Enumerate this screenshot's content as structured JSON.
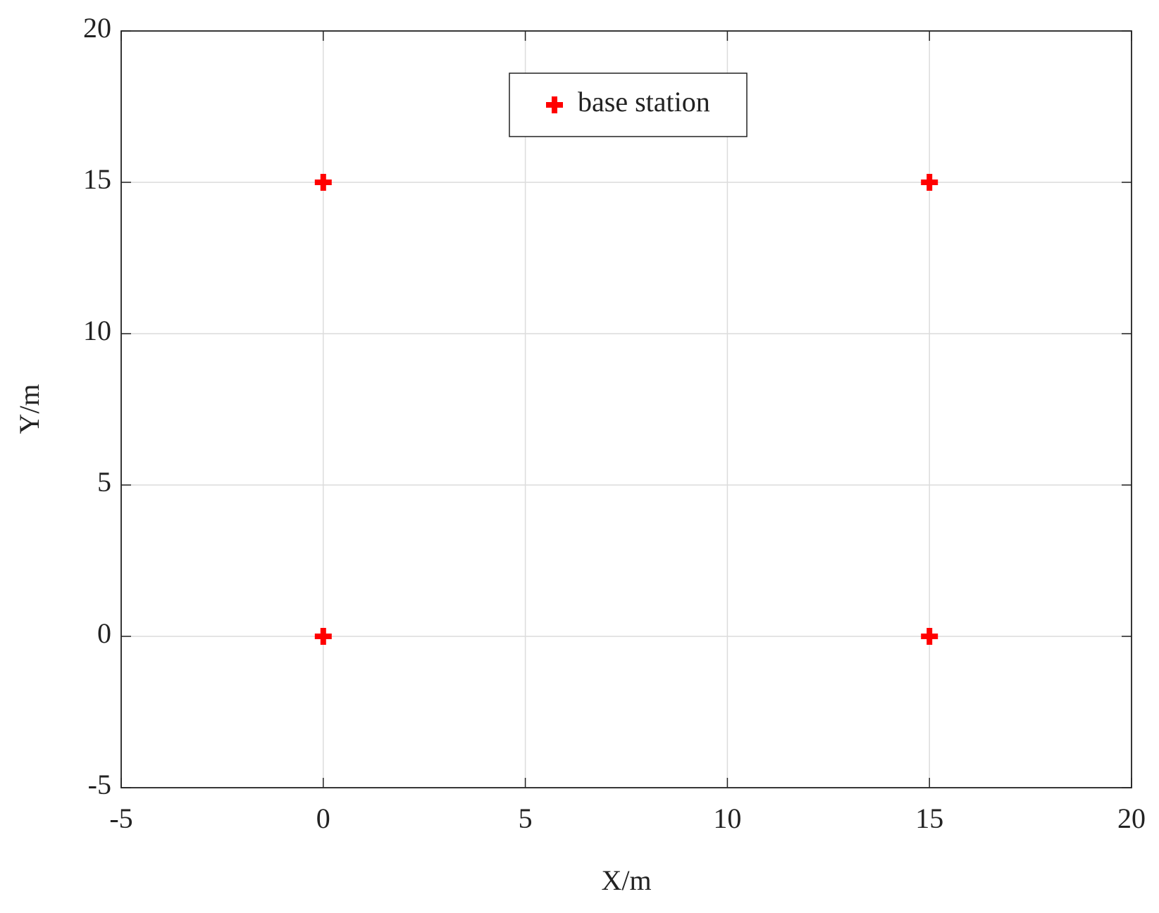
{
  "chart_data": {
    "type": "scatter",
    "x_label": "X/m",
    "y_label": "Y/m",
    "series": [
      {
        "name": "base station",
        "color": "#ff0000",
        "x": [
          0,
          0,
          15,
          15
        ],
        "values": [
          0,
          15,
          0,
          15
        ]
      }
    ],
    "xlim": [
      -5,
      20
    ],
    "xticks": [
      -5,
      0,
      5,
      10,
      15,
      20
    ],
    "ylim": [
      -5,
      20
    ],
    "yticks": [
      -5,
      0,
      5,
      10,
      15,
      20
    ],
    "grid": true,
    "legend": "north"
  }
}
